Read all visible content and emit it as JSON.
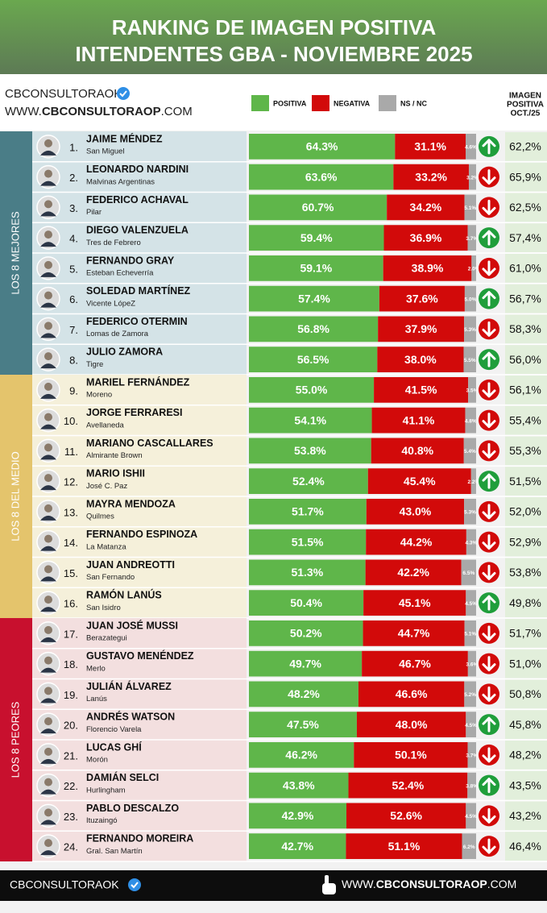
{
  "chart_data": {
    "type": "stacked-bar",
    "title_lines": [
      "RANKING DE IMAGEN POSITIVA",
      "INTENDENTES GBA - NOVIEMBRE 2025"
    ],
    "brand": "CBCONSULTORAOK",
    "website_parts": [
      "WWW.",
      "CBCONSULTORAOP",
      ".COM"
    ],
    "previous_header": [
      "IMAGEN",
      "POSITIVA",
      "OCT./25"
    ],
    "xlim": [
      0,
      100
    ],
    "series": [
      {
        "name": "POSITIVA",
        "color": "#5fb64a"
      },
      {
        "name": "NEGATIVA",
        "color": "#d20a0a"
      },
      {
        "name": "NS / NC",
        "color": "#a9a9a9"
      }
    ],
    "trend_colors": {
      "up": "#1f9e3b",
      "down": "#d20a0a"
    },
    "groups": [
      {
        "label": "LOS 8 MEJORES",
        "color": "#4a7d87",
        "background": "#d4e3e7",
        "rows": [
          {
            "rank": "1.",
            "name": "JAIME MÉNDEZ",
            "place": "San Miguel",
            "values": [
              64.3,
              31.1,
              4.6
            ],
            "value_labels": [
              "64.3%",
              "31.1%",
              "4.6%"
            ],
            "trend": "up",
            "previous": 62.2,
            "previous_label": "62,2%"
          },
          {
            "rank": "2.",
            "name": "LEONARDO NARDINI",
            "place": "Malvinas Argentinas",
            "values": [
              63.6,
              33.2,
              3.2
            ],
            "value_labels": [
              "63.6%",
              "33.2%",
              "3.2%"
            ],
            "trend": "down",
            "previous": 65.9,
            "previous_label": "65,9%"
          },
          {
            "rank": "3.",
            "name": "FEDERICO ACHAVAL",
            "place": "Pilar",
            "values": [
              60.7,
              34.2,
              5.1
            ],
            "value_labels": [
              "60.7%",
              "34.2%",
              "5.1%"
            ],
            "trend": "down",
            "previous": 62.5,
            "previous_label": "62,5%"
          },
          {
            "rank": "4.",
            "name": "DIEGO VALENZUELA",
            "place": "Tres de Febrero",
            "values": [
              59.4,
              36.9,
              3.7
            ],
            "value_labels": [
              "59.4%",
              "36.9%",
              "3.7%"
            ],
            "trend": "up",
            "previous": 57.4,
            "previous_label": "57,4%"
          },
          {
            "rank": "5.",
            "name": "FERNANDO GRAY",
            "place": "Esteban Echeverría",
            "values": [
              59.1,
              38.9,
              2.0
            ],
            "value_labels": [
              "59.1%",
              "38.9%",
              "2.0%"
            ],
            "trend": "down",
            "previous": 61.0,
            "previous_label": "61,0%"
          },
          {
            "rank": "6.",
            "name": "SOLEDAD MARTÍNEZ",
            "place": "Vicente LópeZ",
            "values": [
              57.4,
              37.6,
              5.0
            ],
            "value_labels": [
              "57.4%",
              "37.6%",
              "5.0%"
            ],
            "trend": "up",
            "previous": 56.7,
            "previous_label": "56,7%"
          },
          {
            "rank": "7.",
            "name": "FEDERICO OTERMIN",
            "place": "Lomas de Zamora",
            "values": [
              56.8,
              37.9,
              5.3
            ],
            "value_labels": [
              "56.8%",
              "37.9%",
              "5.3%"
            ],
            "trend": "down",
            "previous": 58.3,
            "previous_label": "58,3%"
          },
          {
            "rank": "8.",
            "name": "JULIO ZAMORA",
            "place": "Tigre",
            "values": [
              56.5,
              38.0,
              5.5
            ],
            "value_labels": [
              "56.5%",
              "38.0%",
              "5.5%"
            ],
            "trend": "up",
            "previous": 56.0,
            "previous_label": "56,0%"
          }
        ]
      },
      {
        "label": "LOS 8 DEL MEDIO",
        "color": "#e4c46c",
        "background": "#f5f0da",
        "rows": [
          {
            "rank": "9.",
            "name": "MARIEL FERNÁNDEZ",
            "place": "Moreno",
            "values": [
              55.0,
              41.5,
              3.5
            ],
            "value_labels": [
              "55.0%",
              "41.5%",
              "3.5%"
            ],
            "trend": "down",
            "previous": 56.1,
            "previous_label": "56,1%"
          },
          {
            "rank": "10.",
            "name": "JORGE FERRARESI",
            "place": "Avellaneda",
            "values": [
              54.1,
              41.1,
              4.8
            ],
            "value_labels": [
              "54.1%",
              "41.1%",
              "4.8%"
            ],
            "trend": "down",
            "previous": 55.4,
            "previous_label": "55,4%"
          },
          {
            "rank": "11.",
            "name": "MARIANO CASCALLARES",
            "place": "Almirante Brown",
            "values": [
              53.8,
              40.8,
              5.4
            ],
            "value_labels": [
              "53.8%",
              "40.8%",
              "5.4%"
            ],
            "trend": "down",
            "previous": 55.3,
            "previous_label": "55,3%"
          },
          {
            "rank": "12.",
            "name": "MARIO ISHII",
            "place": "José C. Paz",
            "values": [
              52.4,
              45.4,
              2.2
            ],
            "value_labels": [
              "52.4%",
              "45.4%",
              "2.2%"
            ],
            "trend": "up",
            "previous": 51.5,
            "previous_label": "51,5%"
          },
          {
            "rank": "13.",
            "name": "MAYRA MENDOZA",
            "place": "Quilmes",
            "values": [
              51.7,
              43.0,
              5.3
            ],
            "value_labels": [
              "51.7%",
              "43.0%",
              "5.3%"
            ],
            "trend": "down",
            "previous": 52.0,
            "previous_label": "52,0%"
          },
          {
            "rank": "14.",
            "name": "FERNANDO ESPINOZA",
            "place": "La Matanza",
            "values": [
              51.5,
              44.2,
              4.3
            ],
            "value_labels": [
              "51.5%",
              "44.2%",
              "4.3%"
            ],
            "trend": "down",
            "previous": 52.9,
            "previous_label": "52,9%"
          },
          {
            "rank": "15.",
            "name": "JUAN ANDREOTTI",
            "place": "San Fernando",
            "values": [
              51.3,
              42.2,
              6.5
            ],
            "value_labels": [
              "51.3%",
              "42.2%",
              "6.5%"
            ],
            "trend": "down",
            "previous": 53.8,
            "previous_label": "53,8%"
          },
          {
            "rank": "16.",
            "name": "RAMÓN LANÚS",
            "place": "San Isidro",
            "values": [
              50.4,
              45.1,
              4.5
            ],
            "value_labels": [
              "50.4%",
              "45.1%",
              "4.5%"
            ],
            "trend": "up",
            "previous": 49.8,
            "previous_label": "49,8%"
          }
        ]
      },
      {
        "label": "LOS 8 PEORES",
        "color": "#c8102e",
        "background": "#f3dfdf",
        "rows": [
          {
            "rank": "17.",
            "name": "JUAN JOSÉ MUSSI",
            "place": "Berazategui",
            "values": [
              50.2,
              44.7,
              5.1
            ],
            "value_labels": [
              "50.2%",
              "44.7%",
              "5.1%"
            ],
            "trend": "down",
            "previous": 51.7,
            "previous_label": "51,7%"
          },
          {
            "rank": "18.",
            "name": "GUSTAVO MENÉNDEZ",
            "place": "Merlo",
            "values": [
              49.7,
              46.7,
              3.6
            ],
            "value_labels": [
              "49.7%",
              "46.7%",
              "3.6%"
            ],
            "trend": "down",
            "previous": 51.0,
            "previous_label": "51,0%"
          },
          {
            "rank": "19.",
            "name": "JULIÁN ÁLVAREZ",
            "place": "Lanús",
            "values": [
              48.2,
              46.6,
              5.2
            ],
            "value_labels": [
              "48.2%",
              "46.6%",
              "5.2%"
            ],
            "trend": "down",
            "previous": 50.8,
            "previous_label": "50,8%"
          },
          {
            "rank": "20.",
            "name": "ANDRÉS WATSON",
            "place": "Florencio Varela",
            "values": [
              47.5,
              48.0,
              4.5
            ],
            "value_labels": [
              "47.5%",
              "48.0%",
              "4.5%"
            ],
            "trend": "up",
            "previous": 45.8,
            "previous_label": "45,8%"
          },
          {
            "rank": "21.",
            "name": "LUCAS GHÍ",
            "place": "Morón",
            "values": [
              46.2,
              50.1,
              3.7
            ],
            "value_labels": [
              "46.2%",
              "50.1%",
              "3.7%"
            ],
            "trend": "down",
            "previous": 48.2,
            "previous_label": "48,2%"
          },
          {
            "rank": "22.",
            "name": "DAMIÁN SELCI",
            "place": "Hurlingham",
            "values": [
              43.8,
              52.4,
              3.8
            ],
            "value_labels": [
              "43.8%",
              "52.4%",
              "3.8%"
            ],
            "trend": "up",
            "previous": 43.5,
            "previous_label": "43,5%"
          },
          {
            "rank": "23.",
            "name": "PABLO DESCALZO",
            "place": "Ituzaingó",
            "values": [
              42.9,
              52.6,
              4.5
            ],
            "value_labels": [
              "42.9%",
              "52.6%",
              "4.5%"
            ],
            "trend": "down",
            "previous": 43.2,
            "previous_label": "43,2%"
          },
          {
            "rank": "24.",
            "name": "FERNANDO MOREIRA",
            "place": "Gral. San Martín",
            "values": [
              42.7,
              51.1,
              6.2
            ],
            "value_labels": [
              "42.7%",
              "51.1%",
              "6.2%"
            ],
            "trend": "down",
            "previous": 46.4,
            "previous_label": "46,4%"
          }
        ]
      }
    ]
  }
}
